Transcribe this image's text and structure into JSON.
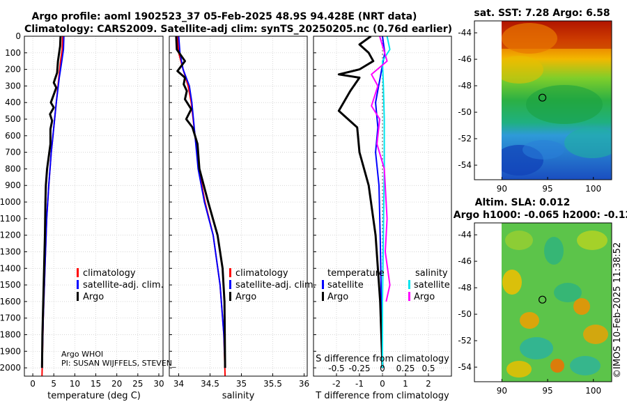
{
  "title_line1": "Argo profile: aoml 1902523_37 05-Feb-2025 48.9S 94.428E (NRT data)",
  "title_line2": "Climatology: CARS2009. Satellite-adj clim: synTS_20250205.nc (0.76d earlier)",
  "colors": {
    "clim": "#ff0000",
    "sat": "#0000ff",
    "argo": "#000000",
    "sat_s": "#00e5ee",
    "argo_s": "#ff00ff",
    "grid": "#c8c8c8"
  },
  "legend_labels": {
    "clim": "climatology",
    "sat": "satellite-adj. clim.",
    "argo": "Argo",
    "temperature": "temperature",
    "salinity": "salinity",
    "satellite": "satellite"
  },
  "argo_info": {
    "line1": "Argo WHOI",
    "line2": "PI: SUSAN WIJFFELS, STEVEN_"
  },
  "credit": "©IMOS 10-Feb-2025 11:38:52",
  "chart_data": [
    {
      "type": "line",
      "xlabel": "temperature (deg C)",
      "ylabel": "depth (dbar)",
      "xlim": [
        -2,
        31
      ],
      "ylim": [
        0,
        2050
      ],
      "xticks": [
        0,
        5,
        10,
        15,
        20,
        25,
        30
      ],
      "xtick_labels": [
        "0",
        "5",
        "10",
        "15",
        "20",
        "25",
        "30"
      ],
      "yticks": [
        0,
        100,
        200,
        300,
        400,
        500,
        600,
        700,
        800,
        900,
        1000,
        1100,
        1200,
        1300,
        1400,
        1500,
        1600,
        1700,
        1800,
        1900,
        2000
      ],
      "ytick_labels": [
        "0",
        "100",
        "200",
        "300",
        "400",
        "500",
        "600",
        "700",
        "800",
        "900",
        "1000",
        "1100",
        "1200",
        "1300",
        "1400",
        "1500",
        "1600",
        "1700",
        "1800",
        "1900",
        "2000"
      ],
      "series": [
        {
          "name": "climatology",
          "color": "#ff0000",
          "width": 2,
          "points": [
            [
              7.1,
              0
            ],
            [
              7.0,
              80
            ],
            [
              6.6,
              150
            ],
            [
              6.2,
              250
            ],
            [
              5.6,
              400
            ],
            [
              5.0,
              550
            ],
            [
              4.4,
              700
            ],
            [
              3.8,
              900
            ],
            [
              3.3,
              1100
            ],
            [
              2.9,
              1400
            ],
            [
              2.5,
              1700
            ],
            [
              2.2,
              2050
            ]
          ]
        },
        {
          "name": "satellite-adj. clim.",
          "color": "#0000ff",
          "width": 2,
          "points": [
            [
              7.4,
              0
            ],
            [
              7.3,
              80
            ],
            [
              6.9,
              150
            ],
            [
              6.3,
              250
            ],
            [
              5.6,
              400
            ],
            [
              5.0,
              550
            ],
            [
              4.4,
              700
            ],
            [
              3.8,
              900
            ],
            [
              3.3,
              1100
            ],
            [
              2.9,
              1400
            ],
            [
              2.5,
              1700
            ],
            [
              2.2,
              2000
            ]
          ]
        },
        {
          "name": "Argo",
          "color": "#000000",
          "width": 3,
          "points": [
            [
              6.6,
              0
            ],
            [
              6.5,
              60
            ],
            [
              6.0,
              150
            ],
            [
              5.8,
              220
            ],
            [
              5.0,
              280
            ],
            [
              5.6,
              310
            ],
            [
              4.3,
              400
            ],
            [
              5.0,
              430
            ],
            [
              4.1,
              470
            ],
            [
              4.6,
              510
            ],
            [
              4.2,
              560
            ],
            [
              4.2,
              650
            ],
            [
              3.4,
              800
            ],
            [
              3.1,
              900
            ],
            [
              3.0,
              1000
            ],
            [
              2.9,
              1200
            ],
            [
              2.6,
              1500
            ],
            [
              2.3,
              1800
            ],
            [
              2.2,
              2000
            ]
          ]
        }
      ]
    },
    {
      "type": "line",
      "xlabel": "salinity",
      "ylabel": "depth (dbar)",
      "xlim": [
        33.85,
        36.05
      ],
      "ylim": [
        0,
        2050
      ],
      "xticks": [
        34,
        34.5,
        35,
        35.5,
        36
      ],
      "xtick_labels": [
        "34",
        "34.5",
        "35",
        "35.5",
        "36"
      ],
      "series": [
        {
          "name": "climatology",
          "color": "#ff0000",
          "width": 2,
          "points": [
            [
              33.98,
              0
            ],
            [
              34.0,
              100
            ],
            [
              34.07,
              200
            ],
            [
              34.15,
              300
            ],
            [
              34.2,
              400
            ],
            [
              34.26,
              600
            ],
            [
              34.32,
              800
            ],
            [
              34.42,
              1000
            ],
            [
              34.55,
              1200
            ],
            [
              34.66,
              1500
            ],
            [
              34.72,
              1800
            ],
            [
              34.74,
              2050
            ]
          ]
        },
        {
          "name": "satellite-adj. clim.",
          "color": "#0000ff",
          "width": 2,
          "points": [
            [
              34.0,
              0
            ],
            [
              34.02,
              100
            ],
            [
              34.07,
              200
            ],
            [
              34.17,
              300
            ],
            [
              34.21,
              400
            ],
            [
              34.26,
              600
            ],
            [
              34.31,
              800
            ],
            [
              34.41,
              1000
            ],
            [
              34.55,
              1200
            ],
            [
              34.66,
              1500
            ],
            [
              34.72,
              1800
            ],
            [
              34.74,
              2000
            ]
          ]
        },
        {
          "name": "Argo",
          "color": "#000000",
          "width": 3,
          "points": [
            [
              33.96,
              0
            ],
            [
              33.97,
              80
            ],
            [
              34.1,
              150
            ],
            [
              33.98,
              210
            ],
            [
              34.1,
              250
            ],
            [
              34.08,
              290
            ],
            [
              34.13,
              330
            ],
            [
              34.1,
              380
            ],
            [
              34.2,
              440
            ],
            [
              34.12,
              500
            ],
            [
              34.22,
              550
            ],
            [
              34.3,
              650
            ],
            [
              34.33,
              800
            ],
            [
              34.47,
              1000
            ],
            [
              34.62,
              1200
            ],
            [
              34.7,
              1400
            ],
            [
              34.73,
              1600
            ],
            [
              34.74,
              2000
            ]
          ]
        }
      ]
    },
    {
      "type": "line",
      "xlabel": "T difference from climatology",
      "x2label": "S difference from climatology",
      "xlim": [
        -3,
        3
      ],
      "ylim": [
        0,
        2050
      ],
      "xticks": [
        -2,
        -1,
        0,
        1,
        2
      ],
      "xtick_labels": [
        "-2",
        "-1",
        "0",
        "1",
        "2"
      ],
      "x2ticks": [
        -0.5,
        -0.25,
        0,
        0.25,
        0.5
      ],
      "x2tick_labels": [
        "-0.5",
        "-0.25",
        "0",
        "0.25",
        "0.5"
      ],
      "x2lim": [
        -0.75,
        0.75
      ],
      "series": [
        {
          "name": "satellite (T)",
          "color": "#0000ff",
          "width": 2,
          "points": [
            [
              0,
              0
            ],
            [
              0.1,
              100
            ],
            [
              -0.1,
              250
            ],
            [
              -0.3,
              400
            ],
            [
              -0.2,
              550
            ],
            [
              -0.3,
              700
            ],
            [
              -0.15,
              900
            ],
            [
              -0.1,
              1200
            ],
            [
              -0.05,
              1600
            ],
            [
              0,
              2000
            ]
          ]
        },
        {
          "name": "Argo (T)",
          "color": "#000000",
          "width": 3,
          "points": [
            [
              -0.5,
              0
            ],
            [
              -1.0,
              50
            ],
            [
              -0.6,
              100
            ],
            [
              -0.4,
              150
            ],
            [
              -1.0,
              200
            ],
            [
              -1.9,
              230
            ],
            [
              -1.0,
              250
            ],
            [
              -1.4,
              330
            ],
            [
              -1.9,
              450
            ],
            [
              -1.1,
              550
            ],
            [
              -1.0,
              700
            ],
            [
              -0.6,
              900
            ],
            [
              -0.3,
              1200
            ],
            [
              -0.1,
              1600
            ],
            [
              0,
              2000
            ]
          ]
        },
        {
          "name": "satellite (S)",
          "color": "#00e5ee",
          "width": 2,
          "points": [
            [
              0.05,
              0
            ],
            [
              0.08,
              80
            ],
            [
              0.0,
              150
            ],
            [
              0.01,
              300
            ],
            [
              0.02,
              500
            ],
            [
              0.02,
              800
            ],
            [
              0.01,
              1200
            ],
            [
              0,
              1600
            ],
            [
              0,
              2000
            ]
          ]
        },
        {
          "name": "Argo (S)",
          "color": "#ff00ff",
          "width": 2,
          "points": [
            [
              -0.03,
              0
            ],
            [
              0.05,
              150
            ],
            [
              -0.12,
              230
            ],
            [
              -0.05,
              300
            ],
            [
              -0.12,
              420
            ],
            [
              -0.03,
              500
            ],
            [
              -0.06,
              650
            ],
            [
              0.02,
              800
            ],
            [
              0.05,
              1100
            ],
            [
              0.03,
              1300
            ],
            [
              0.08,
              1500
            ],
            [
              0.04,
              1600
            ]
          ]
        }
      ]
    }
  ],
  "maps": {
    "sst": {
      "title": "sat. SST: 7.28 Argo: 6.58",
      "yticks": [
        -44,
        -46,
        -48,
        -50,
        -52,
        -54
      ],
      "ytick_labels": [
        "-44",
        "-46",
        "-48",
        "-50",
        "-52",
        "-54"
      ],
      "xticks": [
        90,
        95,
        100
      ],
      "xtick_labels": [
        "90",
        "95",
        "100"
      ],
      "lat_range": [
        -55.1,
        -43.1
      ],
      "lon_range": [
        87,
        102
      ]
    },
    "sla": {
      "title1": "Altim. SLA: 0.012",
      "title2": "Argo h1000: -0.065 h2000: -0.12",
      "yticks": [
        -44,
        -46,
        -48,
        -50,
        -52,
        -54
      ],
      "ytick_labels": [
        "-44",
        "-46",
        "-48",
        "-50",
        "-52",
        "-54"
      ],
      "xticks": [
        90,
        95,
        100
      ],
      "xtick_labels": [
        "90",
        "95",
        "100"
      ],
      "lat_range": [
        -55.1,
        -43.1
      ],
      "lon_range": [
        87,
        102
      ]
    },
    "float": {
      "lat": -48.9,
      "lon": 94.43
    }
  }
}
